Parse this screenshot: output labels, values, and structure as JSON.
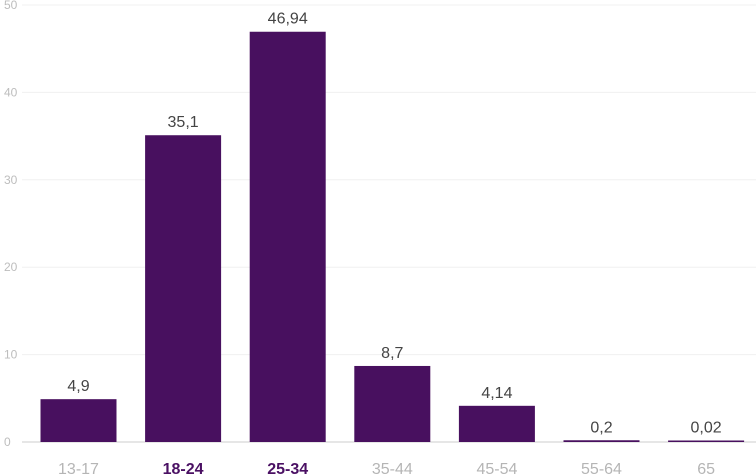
{
  "chart_data": {
    "type": "bar",
    "categories": [
      "13-17",
      "18-24",
      "25-34",
      "35-44",
      "45-54",
      "55-64",
      "65"
    ],
    "values": [
      4.9,
      35.1,
      46.94,
      8.7,
      4.14,
      0.2,
      0.02
    ],
    "data_labels": [
      "4,9",
      "35,1",
      "46,94",
      "8,7",
      "4,14",
      "0,2",
      "0,02"
    ],
    "highlighted_categories": [
      "18-24",
      "25-34"
    ],
    "ylim": [
      0,
      50
    ],
    "yticks": [
      0,
      10,
      20,
      30,
      40,
      50
    ],
    "ytick_labels": [
      "0",
      "10",
      "20",
      "30",
      "40",
      "50"
    ],
    "grid": true,
    "colors": {
      "bar": "#48105f",
      "highlight_label": "#4a1063",
      "tick_label": "#b5b5b5",
      "gridline": "#f0f0f0"
    }
  }
}
